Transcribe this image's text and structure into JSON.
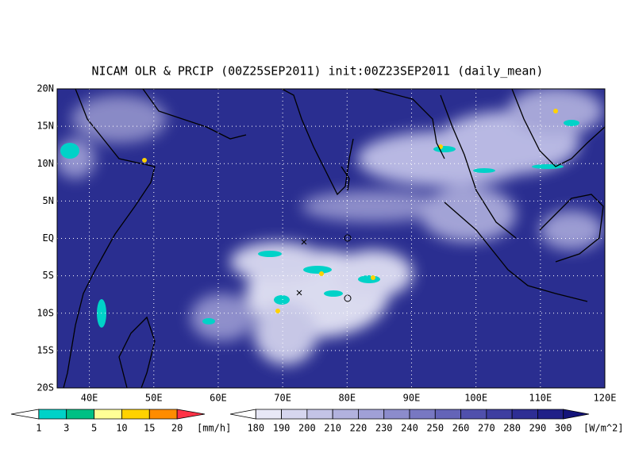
{
  "title": "NICAM OLR & PRCIP (00Z25SEP2011) init:00Z23SEP2011 (daily_mean)",
  "map": {
    "lat_labels": [
      "20N",
      "15N",
      "10N",
      "5N",
      "EQ",
      "5S",
      "10S",
      "15S",
      "20S"
    ],
    "lon_labels": [
      "40E",
      "50E",
      "60E",
      "70E",
      "80E",
      "90E",
      "100E",
      "110E",
      "120E"
    ]
  },
  "precip_legend": {
    "labels": [
      1,
      3,
      5,
      10,
      15,
      20
    ],
    "unit": "[mm/h]",
    "colors": [
      "#ffffff",
      "#00d2c8",
      "#00c084",
      "#ffff96",
      "#ffd200",
      "#ff8c00",
      "#ff3246"
    ]
  },
  "olr_legend": {
    "labels": [
      180,
      190,
      200,
      210,
      220,
      230,
      240,
      250,
      260,
      270,
      280,
      290,
      300
    ],
    "unit": "[W/m^2]",
    "colors": [
      "#ffffff",
      "#e8e8f6",
      "#d6d6ee",
      "#c4c4e6",
      "#b2b2de",
      "#a0a0d6",
      "#8c8ccc",
      "#7878c2",
      "#6464b8",
      "#5050ac",
      "#3e3ea0",
      "#2e2e94",
      "#202088",
      "#14147a"
    ]
  }
}
